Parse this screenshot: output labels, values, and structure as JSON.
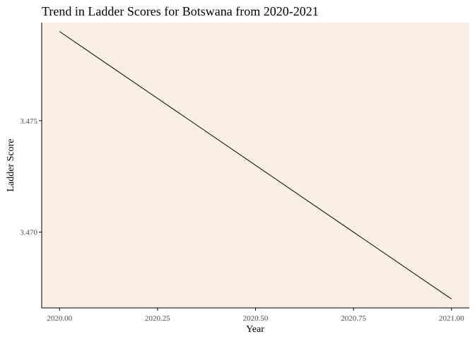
{
  "chart_data": {
    "type": "line",
    "title": "Trend in Ladder Scores for Botswana from 2020-2021",
    "xlabel": "Year",
    "ylabel": "Ladder Score",
    "x": [
      2020.0,
      2021.0
    ],
    "series": [
      {
        "values": [
          3.479,
          3.467
        ]
      }
    ],
    "xlim": [
      1999.95,
      2021.05
    ],
    "ylim": [
      3.4666,
      3.4794
    ],
    "x_ticks": [
      2020.0,
      2020.25,
      2020.5,
      2020.75,
      2021.0
    ],
    "x_tick_labels": [
      "2020.00",
      "2020.25",
      "2020.50",
      "2020.75",
      "2021.00"
    ],
    "y_ticks": [
      3.47,
      3.475
    ],
    "y_tick_labels": [
      "3.470",
      "3.475"
    ],
    "grid": false,
    "legend": "none",
    "colors": {
      "panel_background": "#f8eee4",
      "line": "#000000",
      "axis": "#000000",
      "tick_text": "#4d4d4d"
    }
  }
}
